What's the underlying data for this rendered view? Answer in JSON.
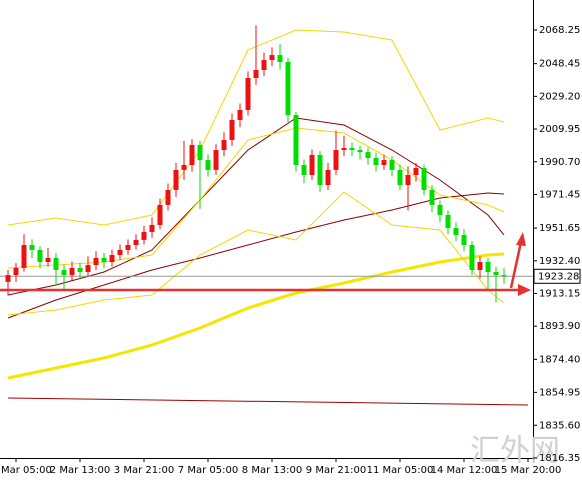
{
  "chart_data": {
    "type": "candlestick",
    "up_color": "#ee1111",
    "down_color": "#00dd00",
    "categories": [
      null,
      "Mar 05:00",
      null,
      null,
      null,
      null,
      null,
      null,
      null,
      "2 Mar 13:00",
      null,
      null,
      null,
      null,
      null,
      null,
      null,
      "3 Mar 21:00",
      null,
      null,
      null,
      null,
      null,
      null,
      null,
      "7 Mar 05:00",
      null,
      null,
      null,
      null,
      null,
      null,
      null,
      "8 Mar 13:00",
      null,
      null,
      null,
      null,
      null,
      null,
      null,
      "9 Mar 21:00",
      null,
      null,
      null,
      null,
      null,
      null,
      null,
      "11 Mar 05:00",
      null,
      null,
      null,
      null,
      null,
      null,
      null,
      "14 Mar 12:00",
      null,
      null,
      null,
      null,
      null,
      null,
      null,
      "15 Mar 20:00"
    ],
    "open": [
      1920.0,
      1924.0,
      1928.2,
      1941.7,
      1938.8,
      1931.7,
      1934.1,
      1927.0,
      1924.0,
      1928.2,
      1925.8,
      1929.9,
      1934.1,
      1931.7,
      1935.8,
      1938.8,
      1941.7,
      1944.7,
      1949.4,
      1953.5,
      1965.3,
      1974.1,
      1985.9,
      1988.8,
      2000.6,
      1991.7,
      1985.9,
      1997.6,
      2003.5,
      2015.3,
      2021.2,
      2040.0,
      2044.7,
      2050.6,
      2053.5,
      2049.4,
      2018.2,
      1988.8,
      1982.9,
      1994.7,
      1977.0,
      1985.9,
      1997.6,
      1998.8,
      1997.6,
      1996.4,
      1992.9,
      1988.8,
      1991.7,
      1985.9,
      1977.0,
      1982.9,
      1987.0,
      1974.1,
      1965.3,
      1959.4,
      1951.7,
      1947.6,
      1941.7,
      1927.0,
      1931.7,
      1925.8,
      1924.0,
      null,
      null,
      null
    ],
    "high": [
      1927.0,
      1931.0,
      1948.0,
      1945.0,
      1941.0,
      1940.0,
      1937.0,
      1930.0,
      1932.0,
      1931.0,
      1935.0,
      1938.0,
      1937.0,
      1939.0,
      1942.0,
      1945.0,
      1948.0,
      1953.0,
      1958.0,
      1969.0,
      1978.0,
      1990.0,
      2003.0,
      2004.0,
      2003.0,
      1995.0,
      2001.0,
      2008.0,
      2019.0,
      2025.0,
      2044.0,
      2071.0,
      2055.0,
      2058.0,
      2060.0,
      2052.0,
      2020.0,
      1992.0,
      1998.0,
      1997.0,
      1990.0,
      2009.0,
      2006.0,
      2002.0,
      2000.0,
      1999.0,
      1996.0,
      1995.0,
      1994.0,
      1989.0,
      1988.0,
      1990.0,
      1989.0,
      1977.0,
      1968.0,
      1962.0,
      1955.0,
      1951.0,
      1944.0,
      1935.0,
      1934.0,
      1929.0,
      1928.0,
      null,
      null,
      null
    ],
    "low": [
      1912.0,
      1920.0,
      1926.0,
      1934.0,
      1928.0,
      1929.0,
      1918.0,
      1915.0,
      1921.0,
      1922.0,
      1923.0,
      1927.0,
      1928.0,
      1929.0,
      1933.0,
      1936.0,
      1939.0,
      1942.0,
      1946.0,
      1951.0,
      1962.0,
      1970.0,
      1980.0,
      1985.0,
      1963.0,
      1982.0,
      1983.0,
      1994.0,
      2000.0,
      2011.0,
      2018.0,
      2036.0,
      2041.0,
      2047.0,
      2045.0,
      2014.0,
      1985.0,
      1978.0,
      1980.0,
      1973.0,
      1974.0,
      1983.0,
      1994.0,
      1994.0,
      1992.0,
      1989.0,
      1985.0,
      1986.0,
      1982.0,
      1974.0,
      1962.0,
      1979.0,
      1971.0,
      1961.0,
      1955.0,
      1948.0,
      1944.0,
      1938.0,
      1924.0,
      1922.0,
      1916.0,
      1908.0,
      1919.0,
      null,
      null,
      null
    ],
    "close": [
      1924.0,
      1928.2,
      1941.7,
      1938.8,
      1931.7,
      1934.1,
      1927.0,
      1924.0,
      1928.2,
      1925.8,
      1929.9,
      1934.1,
      1931.7,
      1935.8,
      1938.8,
      1941.7,
      1944.7,
      1949.4,
      1953.5,
      1965.3,
      1974.1,
      1985.9,
      1988.8,
      2000.6,
      1991.7,
      1985.9,
      1997.6,
      2003.5,
      2015.3,
      2021.2,
      2040.0,
      2044.7,
      2050.6,
      2053.5,
      2049.4,
      2018.2,
      1988.8,
      1982.9,
      1994.7,
      1977.0,
      1985.9,
      1997.6,
      1998.8,
      1997.6,
      1996.4,
      1992.9,
      1988.8,
      1991.7,
      1985.9,
      1977.0,
      1982.9,
      1987.0,
      1974.1,
      1965.3,
      1959.4,
      1951.7,
      1947.6,
      1941.7,
      1927.0,
      1931.7,
      1925.8,
      1924.0,
      1923.28,
      null,
      null,
      null
    ],
    "lines": [
      {
        "color": "#f5e600",
        "width": 3,
        "x": [
          0,
          6,
          12,
          18,
          24,
          30,
          36,
          42,
          48,
          54,
          60,
          62
        ],
        "values": [
          1863.42,
          1869.31,
          1875.19,
          1882.84,
          1892.85,
          1904.62,
          1913.45,
          1919.34,
          1925.81,
          1931.7,
          1935.82,
          1936.41
        ]
      },
      {
        "color": "#8b0000",
        "width": 1,
        "x": [
          0,
          6,
          12,
          18,
          24,
          30,
          36,
          42,
          48,
          54,
          60,
          62
        ],
        "values": [
          1898.74,
          1909.33,
          1918.16,
          1926.99,
          1934.05,
          1941.7,
          1949.35,
          1956.42,
          1962.3,
          1969.37,
          1972.31,
          1971.72
        ]
      },
      {
        "color": "#8b0000",
        "width": 1,
        "x": [
          0,
          6,
          12,
          18,
          24,
          30,
          36,
          42,
          48,
          54,
          60,
          62
        ],
        "values": [
          1912.27,
          1918.16,
          1925.81,
          1938.76,
          1968.19,
          1997.62,
          2016.46,
          2012.33,
          1997.62,
          1979.96,
          1959.36,
          1947.59
        ]
      },
      {
        "color": "#f0d800",
        "width": 1,
        "x": [
          0,
          6,
          12,
          18,
          24,
          30,
          36,
          42,
          48,
          54,
          60,
          62
        ],
        "values": [
          1953.47,
          1957.6,
          1953.47,
          1959.36,
          1997.62,
          2056.48,
          2068.25,
          2067.07,
          2062.37,
          2009.39,
          2016.46,
          2014.1
        ]
      },
      {
        "color": "#f0d800",
        "width": 1,
        "x": [
          0,
          6,
          12,
          18,
          24,
          30,
          36,
          42,
          48,
          54,
          60,
          62
        ],
        "values": [
          1928.17,
          1929.93,
          1931.7,
          1935.82,
          1968.19,
          2003.51,
          2010.57,
          2007.63,
          1991.73,
          1971.13,
          1965.25,
          1961.13
        ]
      },
      {
        "color": "#f0d800",
        "width": 1,
        "x": [
          0,
          6,
          12,
          18,
          24,
          30,
          36,
          42,
          48,
          54,
          60,
          62
        ],
        "values": [
          1900.5,
          1903.44,
          1909.33,
          1912.27,
          1935.82,
          1950.53,
          1944.65,
          1972.9,
          1953.47,
          1950.53,
          1915.22,
          1907.56
        ]
      },
      {
        "color": "#a00000",
        "width": 1,
        "x": [
          0,
          65
        ],
        "values": [
          1851.65,
          1847.53
        ]
      }
    ],
    "level": 1915.22,
    "last_price": 1923.28,
    "ylim": [
      1816.33,
      2085.91
    ],
    "yticks": [
      2068.25,
      2048.45,
      {
        "value": 2029.2,
        "label": "2029.20"
      },
      2009.95,
      {
        "value": 1990.7,
        "label": "1990.70"
      },
      1971.45,
      1951.65,
      {
        "value": 1932.4,
        "label": "1932.40"
      },
      1913.15,
      {
        "value": 1893.9,
        "label": "1893.90"
      },
      {
        "value": 1874.4,
        "label": "1874.40"
      },
      1854.95,
      {
        "value": 1835.6,
        "label": "1835.60"
      },
      1816.35
    ],
    "watermark": "汇外网"
  }
}
